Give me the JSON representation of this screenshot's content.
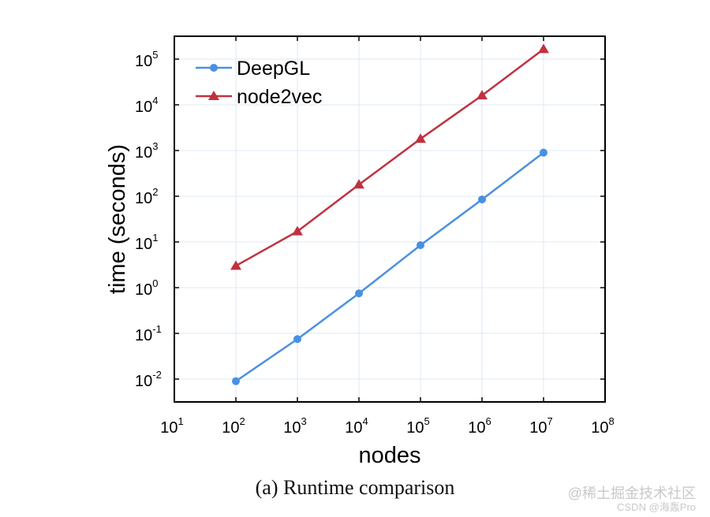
{
  "chart_data": {
    "type": "line",
    "log_x": true,
    "log_y": true,
    "x": [
      100,
      1000,
      10000,
      100000,
      1000000,
      10000000
    ],
    "series": [
      {
        "name": "DeepGL",
        "color": "#4a90e2",
        "marker": "circle",
        "values": [
          0.009,
          0.075,
          0.75,
          8.5,
          85,
          900
        ]
      },
      {
        "name": "node2vec",
        "color": "#c0323f",
        "marker": "triangle",
        "values": [
          3,
          17,
          180,
          1800,
          16000,
          165000
        ]
      }
    ],
    "xlim_exp": [
      1,
      8
    ],
    "ylim_exp": [
      -2.5,
      5.5
    ],
    "x_ticks": [
      {
        "base": "10",
        "exp": "1"
      },
      {
        "base": "10",
        "exp": "2"
      },
      {
        "base": "10",
        "exp": "3"
      },
      {
        "base": "10",
        "exp": "4"
      },
      {
        "base": "10",
        "exp": "5"
      },
      {
        "base": "10",
        "exp": "6"
      },
      {
        "base": "10",
        "exp": "7"
      },
      {
        "base": "10",
        "exp": "8"
      }
    ],
    "y_ticks": [
      {
        "base": "10",
        "exp": "-2"
      },
      {
        "base": "10",
        "exp": "-1"
      },
      {
        "base": "10",
        "exp": "0"
      },
      {
        "base": "10",
        "exp": "1"
      },
      {
        "base": "10",
        "exp": "2"
      },
      {
        "base": "10",
        "exp": "3"
      },
      {
        "base": "10",
        "exp": "4"
      },
      {
        "base": "10",
        "exp": "5"
      }
    ],
    "xlabel": "nodes",
    "ylabel": "time (seconds)",
    "legend_position": "top-left",
    "grid": true
  },
  "caption": "(a)  Runtime comparison",
  "watermark": {
    "line1": "@稀土掘金技术社区",
    "line2": "CSDN @海轰Pro"
  }
}
